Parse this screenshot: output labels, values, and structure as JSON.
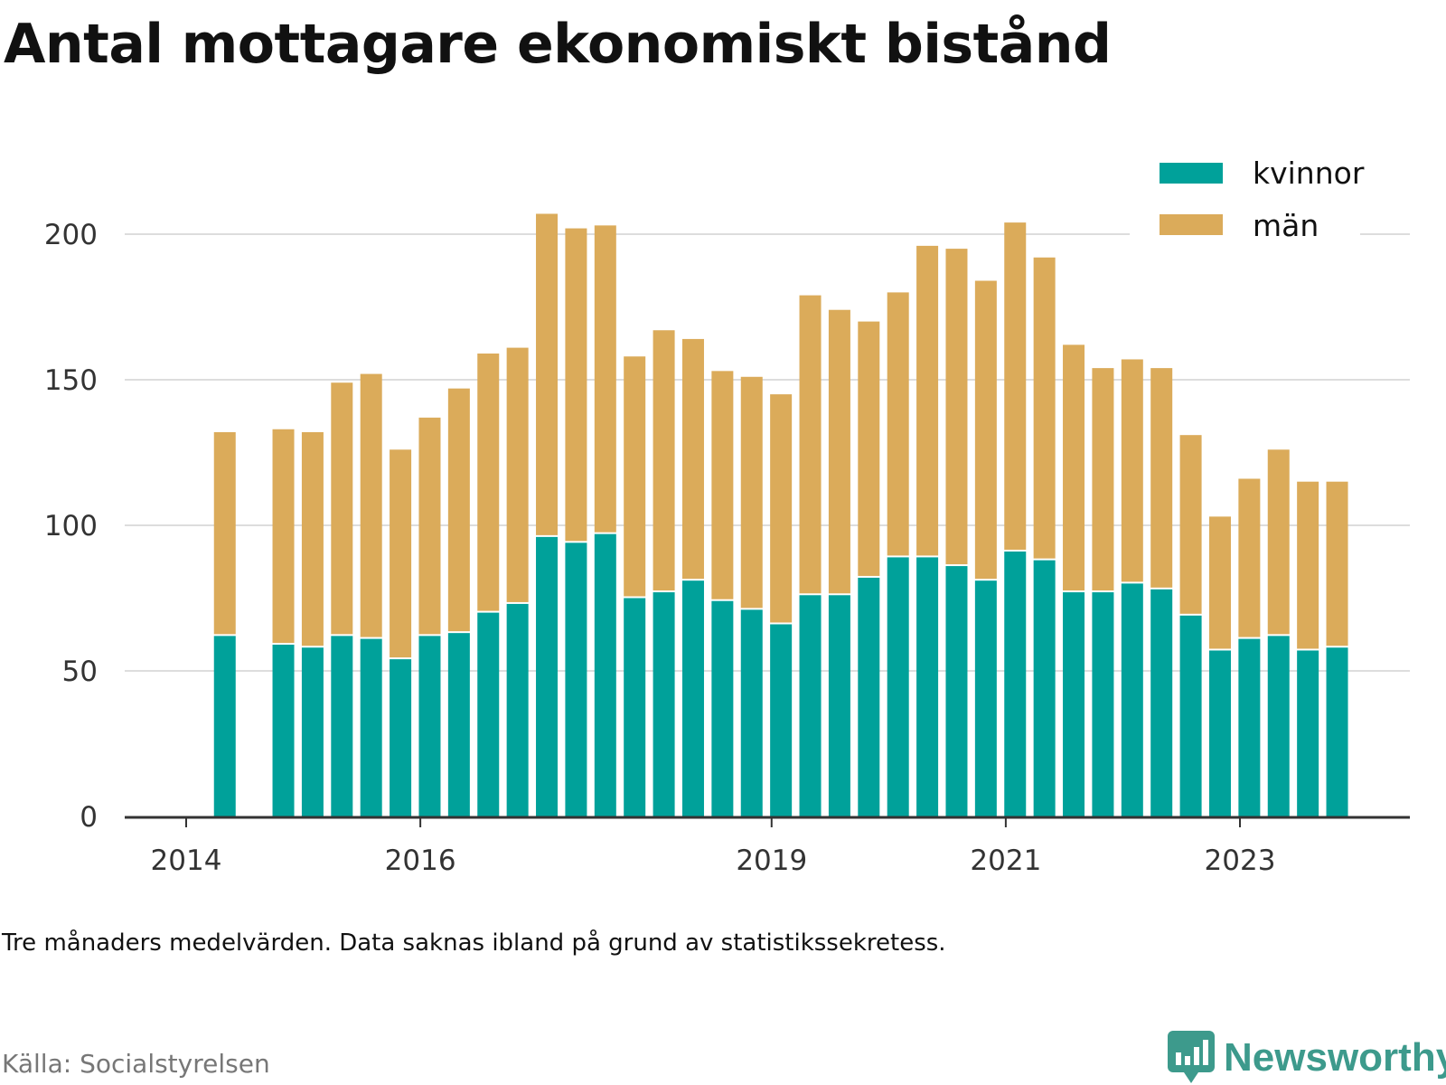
{
  "title": "Antal mottagare ekonomiskt bistånd",
  "note": "Tre månaders medelvärden. Data saknas ibland på grund av statistikssekretess.",
  "source": "Källa: Socialstyrelsen",
  "brand": "Newsworthy",
  "colors": {
    "kvinnor": "#00a19a",
    "man": "#dbab5a",
    "grid": "#dddddd",
    "axis": "#333333",
    "brand": "#3d9a8c"
  },
  "chart_data": {
    "type": "bar",
    "stacked": true,
    "ylim": [
      0,
      210
    ],
    "yticks": [
      0,
      50,
      100,
      150,
      200
    ],
    "grid": true,
    "legend": "top-right",
    "xlim": [
      2013.5,
      2024.3
    ],
    "xticks": [
      2014,
      2016,
      2019,
      2021,
      2023
    ],
    "x": [
      2014.33,
      2014.83,
      2015.08,
      2015.33,
      2015.58,
      2015.83,
      2016.08,
      2016.33,
      2016.58,
      2016.83,
      2017.08,
      2017.33,
      2017.58,
      2017.83,
      2018.08,
      2018.33,
      2018.58,
      2018.83,
      2019.08,
      2019.33,
      2019.58,
      2019.83,
      2020.08,
      2020.33,
      2020.58,
      2020.83,
      2021.08,
      2021.33,
      2021.58,
      2021.83,
      2022.08,
      2022.33,
      2022.58,
      2022.83,
      2023.08,
      2023.33,
      2023.58,
      2023.83
    ],
    "series": [
      {
        "name": "kvinnor",
        "values": [
          62,
          59,
          58,
          62,
          61,
          54,
          62,
          63,
          70,
          73,
          96,
          94,
          97,
          75,
          77,
          81,
          74,
          71,
          66,
          76,
          76,
          82,
          89,
          89,
          86,
          81,
          91,
          88,
          77,
          77,
          80,
          78,
          69,
          57,
          61,
          62,
          57,
          58
        ]
      },
      {
        "name": "män",
        "values": [
          70,
          74,
          74,
          87,
          91,
          72,
          75,
          84,
          89,
          88,
          111,
          108,
          106,
          83,
          90,
          83,
          79,
          80,
          79,
          103,
          98,
          88,
          91,
          107,
          109,
          103,
          113,
          104,
          85,
          77,
          77,
          76,
          62,
          46,
          55,
          64,
          58,
          57
        ]
      }
    ]
  }
}
